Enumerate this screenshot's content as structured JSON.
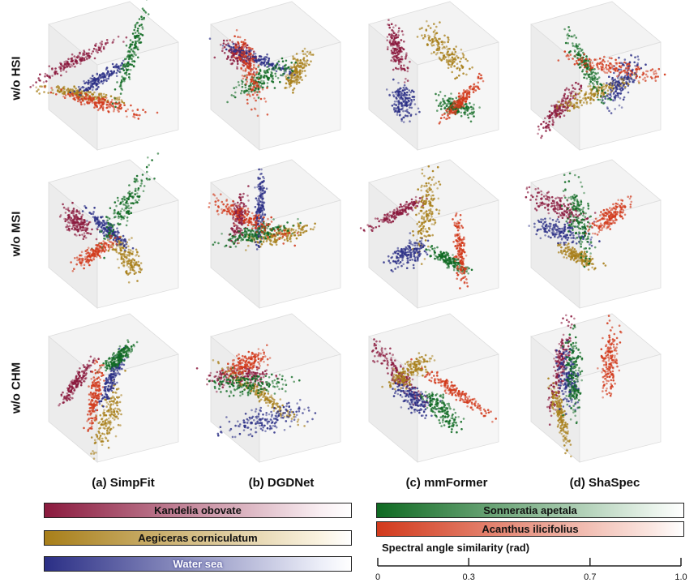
{
  "rows": [
    "w/o HSI",
    "w/o MSI",
    "w/o CHM"
  ],
  "columns": [
    "(a) SimpFit",
    "(b) DGDNet",
    "(c) mmFormer",
    "(d) ShaSpec"
  ],
  "classes": [
    {
      "name": "Kandelia obovate",
      "color": "#8b1a3e"
    },
    {
      "name": "Aegiceras corniculatum",
      "color": "#a87f1a"
    },
    {
      "name": "Water sea",
      "color": "#2b2f86"
    },
    {
      "name": "Sonneratia apetala",
      "color": "#0f6a22"
    },
    {
      "name": "Acanthus ilicifolius",
      "color": "#d23a1c"
    }
  ],
  "chart_data": {
    "type": "scatter",
    "layout": "3x4 grid of 3D scatter plots",
    "series": [
      "Kandelia obovate",
      "Aegiceras corniculatum",
      "Water sea",
      "Sonneratia apetala",
      "Acanthus ilicifolius"
    ],
    "colorbar": {
      "title": "Spectral angle similarity (rad)",
      "range": [
        0,
        1.0
      ],
      "ticks": [
        0,
        0.3,
        0.7,
        1.0
      ],
      "tick_labels": [
        "0",
        "0.3",
        "0.7",
        "1.0"
      ]
    }
  }
}
